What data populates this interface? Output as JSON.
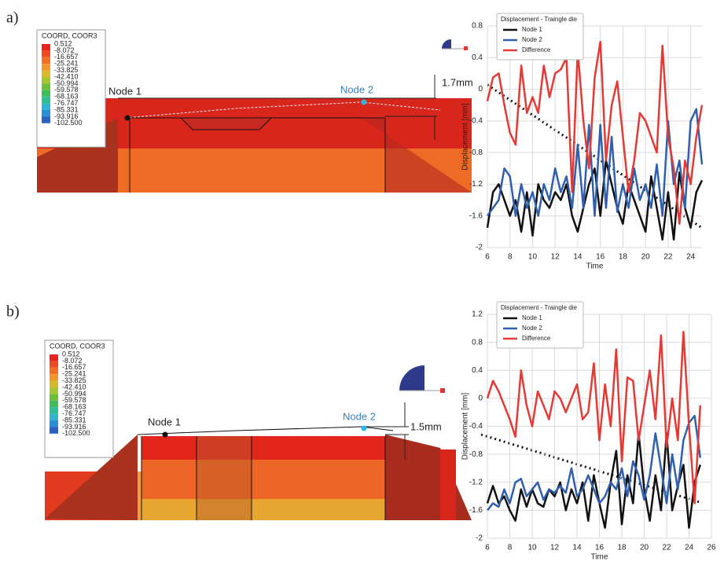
{
  "panels": [
    {
      "label": "a)",
      "contour": {
        "title": "COORD, COOR3",
        "levels": [
          "0.512",
          "-8.072",
          "-16.657",
          "-25.241",
          "-33.825",
          "-42.410",
          "-50.994",
          "-59.578",
          "-68.163",
          "-76.747",
          "-85.331",
          "-93.916",
          "-102.500"
        ],
        "colors": [
          "#e8231f",
          "#ef4a22",
          "#f36f24",
          "#f0962a",
          "#d9b92c",
          "#a7c52e",
          "#6cc039",
          "#3ebd5a",
          "#2fbd94",
          "#2fb5cf",
          "#2a8fd6",
          "#2a62c2"
        ]
      },
      "node_1": "Node 1",
      "node_2": "Node 2",
      "dimension": "1.7mm"
    },
    {
      "label": "b)",
      "contour": {
        "title": "COORD, COOR3",
        "levels": [
          "0.512",
          "-8.072",
          "-16.657",
          "-25.241",
          "-33.825",
          "-42.410",
          "-50.994",
          "-59.578",
          "-68.163",
          "-76.747",
          "-85.331",
          "-93.916",
          "-102.500"
        ],
        "colors": [
          "#e8231f",
          "#ef4a22",
          "#f36f24",
          "#f0962a",
          "#d9b92c",
          "#a7c52e",
          "#6cc039",
          "#3ebd5a",
          "#2fbd94",
          "#2fb5cf",
          "#2a8fd6",
          "#2a62c2"
        ]
      },
      "node_1": "Node 1",
      "node_2": "Node 2",
      "dimension": "1.5mm"
    }
  ],
  "chart_data": [
    {
      "type": "line",
      "legend_title": "Displacement -  Traingle die",
      "x_label": "Time",
      "y_label": "Displacement [mm]",
      "legend": "upper left",
      "grid": true,
      "xlim": [
        6,
        25
      ],
      "xticks": [
        6,
        8,
        10,
        12,
        14,
        16,
        18,
        20,
        22,
        24
      ],
      "ylim": [
        -2,
        0.8
      ],
      "yticks": [
        -2,
        -1.6,
        -1.2,
        -0.8,
        -0.4,
        0,
        0.4,
        0.8
      ],
      "x": [
        6,
        6.5,
        7,
        7.5,
        8,
        8.5,
        9,
        9.5,
        10,
        10.5,
        11,
        11.5,
        12,
        12.5,
        13,
        13.5,
        14,
        14.5,
        15,
        15.5,
        16,
        16.5,
        17,
        17.5,
        18,
        18.5,
        19,
        19.5,
        20,
        20.5,
        21,
        21.5,
        22,
        22.5,
        23,
        23.5,
        24,
        24.5,
        25
      ],
      "series": [
        {
          "name": "Node 1",
          "color": "#111111",
          "values": [
            -1.75,
            -1.3,
            -1.2,
            -1.4,
            -1.6,
            -1.4,
            -1.8,
            -1.3,
            -1.85,
            -1.2,
            -1.4,
            -1.5,
            -1.3,
            -1.4,
            -1.2,
            -1.6,
            -1.8,
            -1.5,
            -1.2,
            -1.0,
            -1.6,
            -0.9,
            -1.2,
            -1.5,
            -1.7,
            -1.2,
            -1.4,
            -1.6,
            -1.8,
            -1.1,
            -1.5,
            -1.9,
            -1.3,
            -1.9,
            -1.05,
            -1.5,
            -1.75,
            -1.3,
            -1.15
          ]
        },
        {
          "name": "Node 2",
          "color": "#2f5fae",
          "values": [
            -1.6,
            -1.5,
            -1.4,
            -1.0,
            -1.1,
            -1.6,
            -1.2,
            -1.5,
            -1.3,
            -1.6,
            -1.2,
            -1.4,
            -1.0,
            -1.3,
            -1.1,
            -1.5,
            -0.7,
            -1.5,
            -0.45,
            -1.6,
            -0.45,
            -1.5,
            -0.6,
            -1.55,
            -1.2,
            -1.5,
            -1.0,
            -1.4,
            -1.2,
            -1.5,
            -0.95,
            -1.6,
            -0.4,
            -1.2,
            -0.9,
            -1.5,
            -0.4,
            -0.25,
            -0.95
          ]
        },
        {
          "name": "Difference",
          "color": "#e53935",
          "values": [
            -0.15,
            0.15,
            0.2,
            -0.2,
            -0.55,
            -0.7,
            0.3,
            -0.3,
            -0.1,
            -0.3,
            0.3,
            -0.1,
            0.2,
            0.25,
            0.4,
            -1.3,
            0.5,
            -0.4,
            -1.0,
            0.15,
            0.6,
            -0.9,
            -0.2,
            0.1,
            -0.6,
            -1.3,
            -0.9,
            -0.3,
            -0.4,
            -0.6,
            -0.8,
            0.55,
            -0.6,
            -1.0,
            -1.7,
            -0.9,
            -1.2,
            -0.6,
            -0.2
          ]
        }
      ]
    },
    {
      "type": "line",
      "legend_title": "Displacement -  Traingle die",
      "x_label": "Time",
      "y_label": "Displacement [mm]",
      "legend": "upper left",
      "grid": true,
      "xlim": [
        6,
        26
      ],
      "xticks": [
        6,
        8,
        10,
        12,
        14,
        16,
        18,
        20,
        22,
        24,
        26
      ],
      "ylim": [
        -2,
        1.2
      ],
      "yticks": [
        -2,
        -1.6,
        -1.2,
        -0.8,
        -0.4,
        0,
        0.4,
        0.8,
        1.2
      ],
      "x": [
        6,
        6.5,
        7,
        7.5,
        8,
        8.5,
        9,
        9.5,
        10,
        10.5,
        11,
        11.5,
        12,
        12.5,
        13,
        13.5,
        14,
        14.5,
        15,
        15.5,
        16,
        16.5,
        17,
        17.5,
        18,
        18.5,
        19,
        19.5,
        20,
        20.5,
        21,
        21.5,
        22,
        22.5,
        23,
        23.5,
        24,
        24.5,
        25
      ],
      "series": [
        {
          "name": "Node 1",
          "color": "#111111",
          "values": [
            -1.5,
            -1.25,
            -1.5,
            -1.4,
            -1.6,
            -1.75,
            -1.3,
            -1.55,
            -1.3,
            -1.5,
            -1.55,
            -1.3,
            -1.4,
            -1.2,
            -1.6,
            -1.3,
            -1.5,
            -1.2,
            -1.75,
            -1.1,
            -1.5,
            -1.85,
            -1.2,
            -0.75,
            -1.8,
            -1.1,
            -1.5,
            -0.5,
            -1.3,
            -1.75,
            -1.1,
            -1.6,
            -0.5,
            -1.6,
            -1.25,
            -0.95,
            -1.85,
            -1.2,
            -0.95
          ]
        },
        {
          "name": "Node 2",
          "color": "#2f5fae",
          "values": [
            -1.6,
            -1.5,
            -1.55,
            -1.3,
            -1.5,
            -1.2,
            -1.15,
            -1.4,
            -1.3,
            -1.2,
            -1.45,
            -1.3,
            -1.35,
            -1.25,
            -1.35,
            -1.0,
            -1.4,
            -1.3,
            -1.1,
            -1.3,
            -1.5,
            -1.4,
            -1.2,
            -1.3,
            -1.0,
            -1.4,
            -0.9,
            -1.1,
            -1.45,
            -1.1,
            -0.5,
            -1.0,
            -1.5,
            -0.8,
            -1.3,
            -0.6,
            -0.35,
            -0.25,
            -0.85
          ]
        },
        {
          "name": "Difference",
          "color": "#e53935",
          "values": [
            0,
            0.25,
            0.1,
            -0.1,
            -0.3,
            -0.55,
            0.4,
            -0.1,
            -0.4,
            0.1,
            -0.1,
            -0.3,
            0.1,
            0,
            -0.2,
            0,
            0.2,
            -0.3,
            -0.2,
            0.5,
            -0.6,
            0.2,
            -0.4,
            0.7,
            -0.9,
            0.3,
            0.25,
            -0.6,
            -0.1,
            0.4,
            -0.3,
            0.9,
            -0.7,
            0,
            -0.6,
            0.95,
            -0.4,
            -1.5,
            -0.1
          ]
        }
      ]
    }
  ]
}
